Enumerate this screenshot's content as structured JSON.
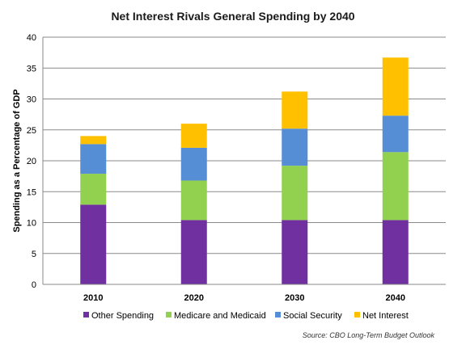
{
  "chart_data": {
    "type": "bar",
    "stacked": true,
    "title": "Net Interest Rivals General Spending by 2040",
    "xlabel": "",
    "ylabel": "Spending as a Percentage of GDP",
    "categories": [
      "2010",
      "2020",
      "2030",
      "2040"
    ],
    "ylim": [
      0,
      40
    ],
    "yticks": [
      0,
      5,
      10,
      15,
      20,
      25,
      30,
      35,
      40
    ],
    "grid": true,
    "legend_position": "bottom",
    "series": [
      {
        "name": "Other Spending",
        "color": "#7030a0",
        "values": [
          12.9,
          10.4,
          10.4,
          10.4
        ]
      },
      {
        "name": "Medicare and Medicaid",
        "color": "#92d050",
        "values": [
          5.0,
          6.4,
          8.8,
          11.0
        ]
      },
      {
        "name": "Social Security",
        "color": "#558ed5",
        "values": [
          4.8,
          5.3,
          6.0,
          5.9
        ]
      },
      {
        "name": "Net Interest",
        "color": "#ffc000",
        "values": [
          1.3,
          3.9,
          6.0,
          9.4
        ]
      }
    ],
    "source": "Source: CBO Long-Term Budget Outlook"
  }
}
